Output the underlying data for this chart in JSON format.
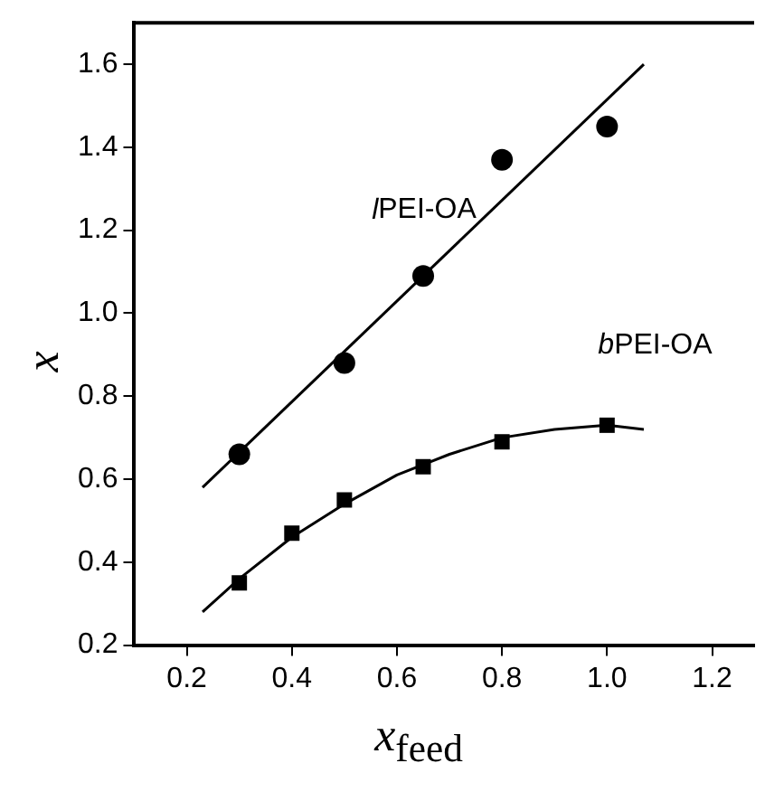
{
  "chart_data": {
    "type": "scatter",
    "xlabel": "x$_{feed}$",
    "ylabel": "x",
    "xlim": [
      0.1,
      1.28
    ],
    "ylim": [
      0.2,
      1.7
    ],
    "xticks": [
      0.2,
      0.4,
      0.6,
      0.8,
      {
        "value": 1.0,
        "label": "1.0"
      },
      1.2
    ],
    "yticks": [
      0.2,
      0.4,
      0.6,
      0.8,
      {
        "value": 1.0,
        "label": "1.0"
      },
      1.2,
      1.4,
      1.6
    ],
    "grid": false,
    "legend": false,
    "series": [
      {
        "name": "lPEI-OA",
        "marker": "circle",
        "color": "#000000",
        "x": [
          0.3,
          0.5,
          0.65,
          0.8,
          1.0
        ],
        "values": [
          0.66,
          0.88,
          1.09,
          1.37,
          1.45
        ]
      },
      {
        "name": "bPEI-OA",
        "marker": "square",
        "color": "#000000",
        "x": [
          0.3,
          0.4,
          0.5,
          0.65,
          0.8,
          1.0
        ],
        "values": [
          0.35,
          0.47,
          0.55,
          0.63,
          0.69,
          0.73
        ]
      },
      {
        "type": "line",
        "marker": "none",
        "color": "#000000",
        "x": [
          0.23,
          1.07
        ],
        "values": [
          0.58,
          1.6
        ]
      },
      {
        "type": "line",
        "marker": "none",
        "color": "#000000",
        "x": [
          0.23,
          0.3,
          0.4,
          0.5,
          0.6,
          0.7,
          0.8,
          0.9,
          1.0,
          1.07
        ],
        "values": [
          0.28,
          0.36,
          0.46,
          0.54,
          0.61,
          0.66,
          0.7,
          0.72,
          0.73,
          0.72
        ]
      }
    ]
  }
}
